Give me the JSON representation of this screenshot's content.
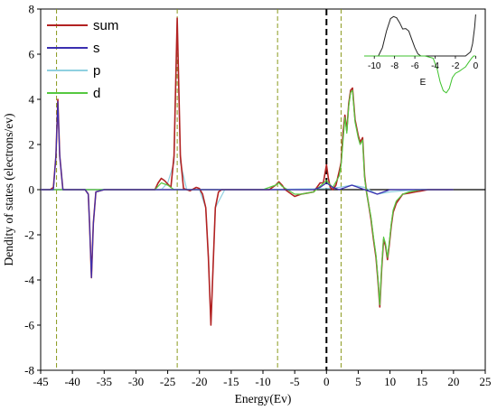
{
  "chart_data": [
    {
      "type": "line",
      "title": "",
      "xlabel": "Energy(Ev)",
      "ylabel": "Dendity of states (electrons/ev)",
      "xlim": [
        -45,
        25
      ],
      "ylim": [
        -8,
        8
      ],
      "xticks": [
        "-45",
        "-40",
        "-35",
        "-30",
        "-25",
        "-20",
        "-15",
        "-10",
        "-5",
        "0",
        "5",
        "10",
        "15",
        "20",
        "25"
      ],
      "yticks": [
        "-8",
        "-6",
        "-4",
        "-2",
        "0",
        "2",
        "4",
        "6",
        "8"
      ],
      "grid": false,
      "legend_position": "top-left",
      "fermi_level": 0,
      "reference_lines_x": [
        -42.5,
        -23.5,
        -7.7,
        2.3
      ],
      "series": [
        {
          "name": "sum",
          "color": "#b22222",
          "x": [
            -45,
            -43.5,
            -43,
            -42.6,
            -42.3,
            -42,
            -41.5,
            -38,
            -37.5,
            -37.3,
            -37,
            -36.7,
            -36.3,
            -35,
            -27,
            -26.5,
            -26,
            -25.5,
            -24.5,
            -24,
            -23.5,
            -23,
            -22.5,
            -21.5,
            -20.5,
            -20,
            -19.5,
            -19,
            -18.6,
            -18.2,
            -17.8,
            -17.5,
            -17,
            -16.5,
            -12,
            -9,
            -8,
            -7.5,
            -7,
            -6.5,
            -6,
            -5,
            -4,
            -3,
            -2,
            -1.5,
            -1,
            -0.5,
            0,
            0.3,
            0.6,
            1,
            1.5,
            2,
            2.3,
            2.6,
            2.9,
            3.2,
            3.5,
            3.8,
            4.1,
            4.5,
            5,
            5.3,
            5.7,
            6,
            6.3,
            6.6,
            7,
            7.4,
            7.8,
            8.1,
            8.4,
            8.7,
            9,
            9.3,
            9.6,
            9.9,
            10.2,
            10.5,
            11,
            11.5,
            12,
            13,
            14,
            15,
            16,
            17,
            18,
            20
          ],
          "y": [
            0,
            0,
            0.1,
            1.5,
            4,
            1.5,
            0,
            0,
            -0.2,
            -1.5,
            -3.9,
            -1.5,
            -0.1,
            0,
            0,
            0.3,
            0.5,
            0.4,
            0.1,
            1.5,
            7.6,
            1.5,
            0.05,
            -0.05,
            0.1,
            0.05,
            -0.2,
            -0.8,
            -3,
            -6,
            -3,
            -0.8,
            -0.1,
            0,
            0,
            0,
            0.2,
            0.35,
            0.2,
            0,
            -0.1,
            -0.3,
            -0.2,
            -0.15,
            -0.1,
            0.1,
            0.3,
            0.3,
            1.1,
            0.5,
            0.1,
            0,
            0.2,
            0.8,
            1.2,
            2.5,
            3.3,
            2.6,
            3.8,
            4.4,
            4.5,
            3.1,
            2.4,
            2.1,
            2.3,
            0.6,
            -0.1,
            -0.6,
            -1.3,
            -2.2,
            -3,
            -4,
            -5.2,
            -3.5,
            -2.2,
            -2.5,
            -3.1,
            -2.4,
            -1.6,
            -1,
            -0.6,
            -0.4,
            -0.2,
            -0.15,
            -0.1,
            -0.05,
            0,
            0,
            0,
            0
          ]
        },
        {
          "name": "s",
          "color": "#3b2fb0",
          "x": [
            -45,
            -43,
            -42.6,
            -42.3,
            -42,
            -41.5,
            -38,
            -37.5,
            -37.3,
            -37,
            -36.7,
            -36.3,
            -35,
            -5,
            -2,
            -1,
            0,
            1,
            2,
            3,
            4,
            5,
            6,
            7,
            8,
            9,
            10,
            12,
            15,
            20
          ],
          "y": [
            0,
            0,
            1.5,
            3.9,
            1.5,
            0,
            0,
            -0.2,
            -1.5,
            -3.9,
            -1.5,
            -0.1,
            0,
            0,
            0,
            0.1,
            0.3,
            0.1,
            0,
            0.1,
            0.2,
            0.1,
            0,
            -0.1,
            -0.2,
            -0.1,
            0,
            0,
            0,
            0
          ]
        },
        {
          "name": "p",
          "color": "#8fd0e0",
          "x": [
            -45,
            -26,
            -25,
            -24,
            -23.5,
            -23,
            -22,
            -20,
            -19,
            -18.6,
            -18.2,
            -17.8,
            -17.5,
            -16,
            -10,
            0,
            2,
            4,
            6,
            8,
            10,
            12,
            15,
            20
          ],
          "y": [
            0,
            0,
            0.3,
            1.2,
            7.5,
            1.2,
            0,
            0,
            -0.8,
            -3,
            -5.9,
            -3,
            -0.8,
            0,
            0,
            0.05,
            0.1,
            0.2,
            0.1,
            -0.2,
            -0.1,
            -0.05,
            0,
            0
          ]
        },
        {
          "name": "d",
          "color": "#55c840",
          "x": [
            -45,
            -27,
            -26,
            -25,
            -24,
            -23,
            -20,
            -10,
            -8,
            -7.5,
            -7,
            -5,
            -4,
            -2,
            0,
            1,
            2,
            2.3,
            2.9,
            3.2,
            3.5,
            3.8,
            4.1,
            4.5,
            5,
            5.3,
            5.7,
            6,
            6.3,
            6.6,
            7,
            7.4,
            7.8,
            8.1,
            8.4,
            8.7,
            9,
            9.3,
            9.6,
            9.9,
            10.2,
            10.5,
            11,
            12,
            13,
            15,
            18,
            20
          ],
          "y": [
            0,
            0,
            0.3,
            0.2,
            0,
            0,
            0,
            0,
            0.2,
            0.3,
            0.15,
            -0.2,
            -0.2,
            -0.1,
            0.4,
            0.1,
            0.6,
            1.1,
            3.2,
            2.5,
            3.7,
            4.3,
            4.4,
            3,
            2.3,
            2,
            2.2,
            0.5,
            -0.1,
            -0.6,
            -1.2,
            -2.1,
            -2.9,
            -3.9,
            -5.1,
            -3.4,
            -2.1,
            -2.4,
            -3,
            -2.3,
            -1.5,
            -0.9,
            -0.5,
            -0.2,
            -0.1,
            0,
            0,
            0
          ]
        }
      ]
    },
    {
      "type": "line",
      "title": "",
      "xlabel": "E",
      "xlim": [
        -11,
        0.5
      ],
      "xticks": [
        "-10",
        "-8",
        "-6",
        "-4",
        "-2",
        "0"
      ],
      "series": [
        {
          "name": "",
          "color": "#222222",
          "x": [
            -11,
            -9.6,
            -9.2,
            -8.8,
            -8.4,
            -8.1,
            -7.8,
            -7.5,
            -7.2,
            -6.9,
            -6.6,
            -6.3,
            -6,
            -5.7,
            -5.4,
            -5,
            -4,
            -3,
            -2,
            -1,
            -0.5,
            -0.3,
            -0.1,
            0
          ],
          "y": [
            0,
            0,
            0.2,
            0.6,
            0.9,
            0.95,
            0.92,
            0.8,
            0.65,
            0.66,
            0.6,
            0.4,
            0.2,
            0.05,
            0,
            0,
            0,
            0,
            0,
            0,
            0.1,
            0.3,
            0.7,
            1.0
          ]
        },
        {
          "name": "",
          "color": "#3ec22c",
          "x": [
            -11,
            -5,
            -4.2,
            -3.8,
            -3.5,
            -3.2,
            -2.9,
            -2.6,
            -2.3,
            -2,
            -1.6,
            -1.3,
            -1,
            -0.7,
            -0.4,
            -0.2,
            0
          ],
          "y": [
            0,
            0,
            -0.05,
            -0.3,
            -0.6,
            -0.8,
            -0.85,
            -0.75,
            -0.5,
            -0.4,
            -0.35,
            -0.3,
            -0.25,
            -0.15,
            -0.05,
            0,
            0
          ]
        }
      ]
    }
  ]
}
